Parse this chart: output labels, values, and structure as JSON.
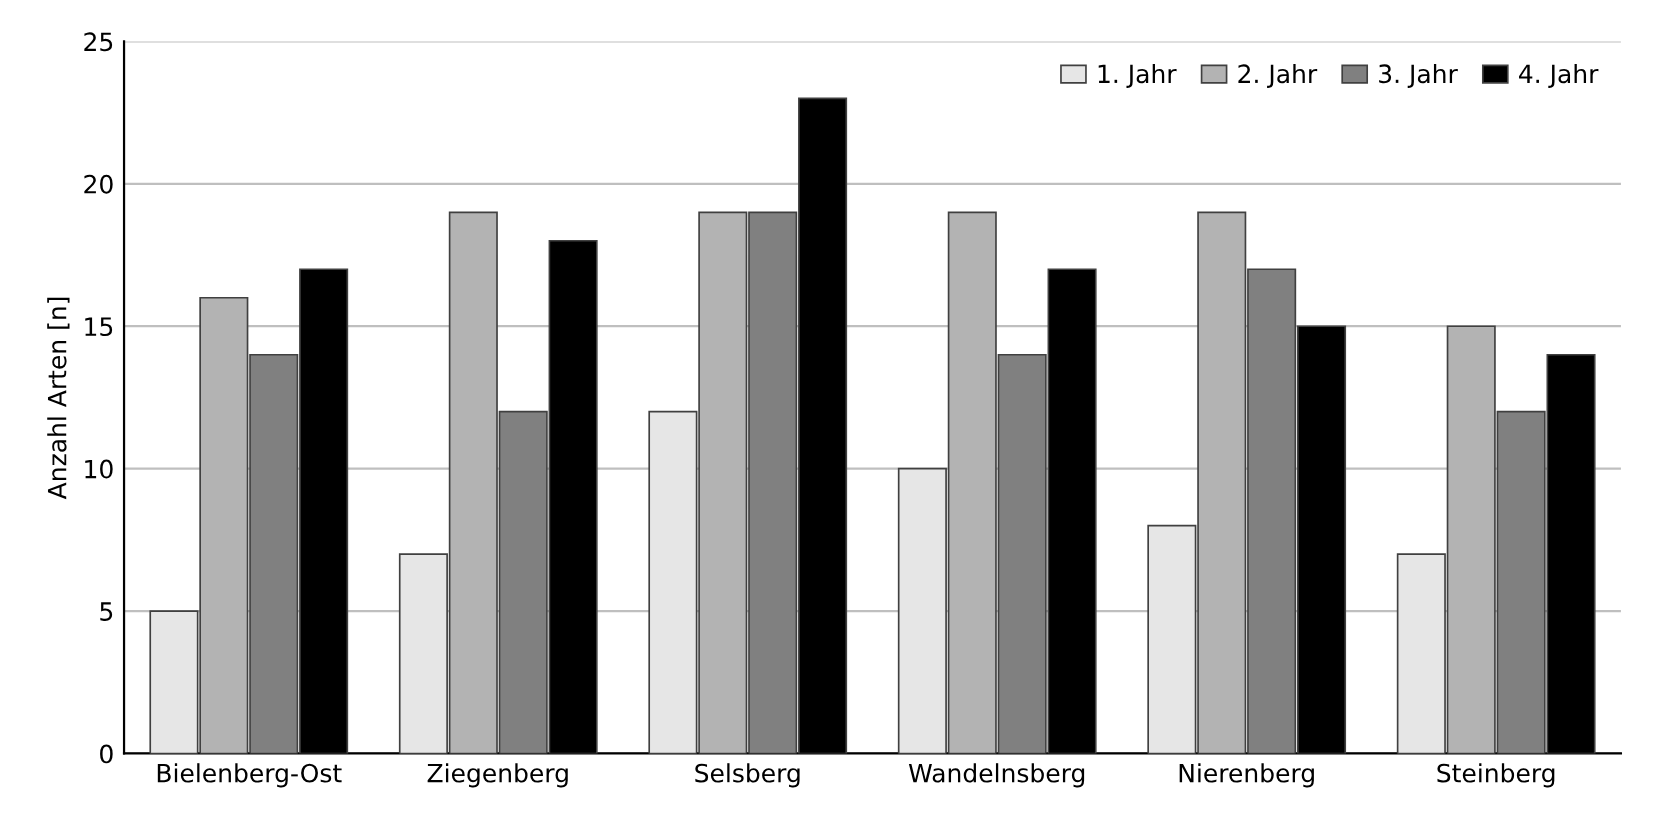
{
  "chart_data": {
    "type": "bar",
    "ylabel": "Anzahl Arten [n]",
    "categories": [
      "Bielenberg-Ost",
      "Ziegenberg",
      "Selsberg",
      "Wandelnsberg",
      "Nierenberg",
      "Steinberg"
    ],
    "series": [
      {
        "name": "1. Jahr",
        "color": "#e6e6e6",
        "values": [
          5,
          7,
          12,
          10,
          8,
          7
        ]
      },
      {
        "name": "2. Jahr",
        "color": "#b3b3b3",
        "values": [
          16,
          19,
          19,
          19,
          19,
          15
        ]
      },
      {
        "name": "3. Jahr",
        "color": "#808080",
        "values": [
          14,
          12,
          19,
          14,
          17,
          12
        ]
      },
      {
        "name": "4. Jahr",
        "color": "#000000",
        "values": [
          17,
          18,
          23,
          17,
          15,
          14
        ]
      }
    ],
    "ylim": [
      0,
      25
    ],
    "yticks": [
      0,
      5,
      10,
      15,
      20,
      25
    ],
    "grid": "y",
    "legend": "top right"
  }
}
